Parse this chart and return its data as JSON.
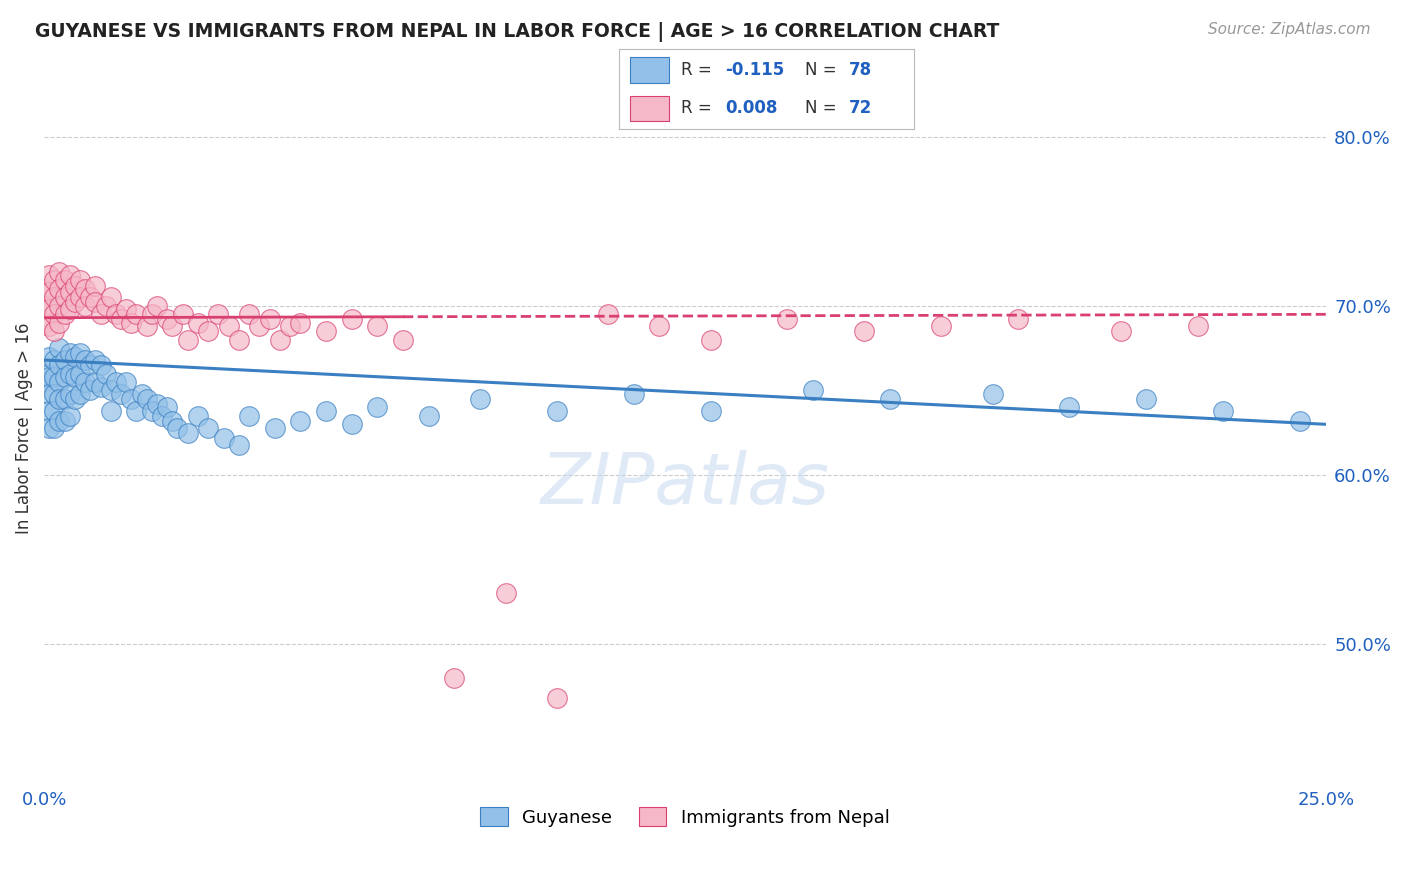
{
  "title": "GUYANESE VS IMMIGRANTS FROM NEPAL IN LABOR FORCE | AGE > 16 CORRELATION CHART",
  "source": "Source: ZipAtlas.com",
  "ylabel": "In Labor Force | Age > 16",
  "xmin": 0.0,
  "xmax": 0.25,
  "ymin": 0.42,
  "ymax": 0.835,
  "yticks": [
    0.5,
    0.6,
    0.7,
    0.8
  ],
  "ytick_labels": [
    "50.0%",
    "60.0%",
    "70.0%",
    "80.0%"
  ],
  "xticks": [
    0.0,
    0.05,
    0.1,
    0.15,
    0.2,
    0.25
  ],
  "xtick_labels": [
    "0.0%",
    "",
    "",
    "",
    "",
    "25.0%"
  ],
  "blue_color": "#92c0e8",
  "pink_color": "#f5b8c8",
  "blue_line_color": "#3a7fc1",
  "pink_line_color": "#d94070",
  "watermark": "ZIPatlas",
  "blue_x": [
    0.0,
    0.0,
    0.001,
    0.001,
    0.001,
    0.001,
    0.001,
    0.002,
    0.002,
    0.002,
    0.002,
    0.002,
    0.003,
    0.003,
    0.003,
    0.003,
    0.003,
    0.004,
    0.004,
    0.004,
    0.004,
    0.005,
    0.005,
    0.005,
    0.005,
    0.006,
    0.006,
    0.006,
    0.007,
    0.007,
    0.007,
    0.008,
    0.008,
    0.009,
    0.009,
    0.01,
    0.01,
    0.011,
    0.011,
    0.012,
    0.013,
    0.013,
    0.014,
    0.015,
    0.016,
    0.017,
    0.018,
    0.019,
    0.02,
    0.021,
    0.022,
    0.023,
    0.024,
    0.025,
    0.026,
    0.028,
    0.03,
    0.032,
    0.035,
    0.038,
    0.04,
    0.045,
    0.05,
    0.055,
    0.06,
    0.065,
    0.075,
    0.085,
    0.1,
    0.115,
    0.13,
    0.15,
    0.165,
    0.185,
    0.2,
    0.215,
    0.23,
    0.245
  ],
  "blue_y": [
    0.66,
    0.655,
    0.67,
    0.658,
    0.648,
    0.638,
    0.628,
    0.668,
    0.658,
    0.648,
    0.638,
    0.628,
    0.675,
    0.665,
    0.655,
    0.645,
    0.632,
    0.668,
    0.658,
    0.645,
    0.632,
    0.672,
    0.66,
    0.648,
    0.635,
    0.67,
    0.658,
    0.645,
    0.672,
    0.66,
    0.648,
    0.668,
    0.655,
    0.665,
    0.65,
    0.668,
    0.655,
    0.665,
    0.652,
    0.66,
    0.65,
    0.638,
    0.655,
    0.648,
    0.655,
    0.645,
    0.638,
    0.648,
    0.645,
    0.638,
    0.642,
    0.635,
    0.64,
    0.632,
    0.628,
    0.625,
    0.635,
    0.628,
    0.622,
    0.618,
    0.635,
    0.628,
    0.632,
    0.638,
    0.63,
    0.64,
    0.635,
    0.645,
    0.638,
    0.648,
    0.638,
    0.65,
    0.645,
    0.648,
    0.64,
    0.645,
    0.638,
    0.632
  ],
  "pink_x": [
    0.0,
    0.0,
    0.0,
    0.001,
    0.001,
    0.001,
    0.001,
    0.002,
    0.002,
    0.002,
    0.002,
    0.003,
    0.003,
    0.003,
    0.003,
    0.004,
    0.004,
    0.004,
    0.005,
    0.005,
    0.005,
    0.006,
    0.006,
    0.007,
    0.007,
    0.008,
    0.008,
    0.009,
    0.01,
    0.01,
    0.011,
    0.012,
    0.013,
    0.014,
    0.015,
    0.016,
    0.017,
    0.018,
    0.02,
    0.021,
    0.022,
    0.024,
    0.025,
    0.027,
    0.028,
    0.03,
    0.032,
    0.034,
    0.036,
    0.038,
    0.04,
    0.042,
    0.044,
    0.046,
    0.048,
    0.05,
    0.055,
    0.06,
    0.065,
    0.07,
    0.08,
    0.09,
    0.1,
    0.11,
    0.12,
    0.13,
    0.145,
    0.16,
    0.175,
    0.19,
    0.21,
    0.225
  ],
  "pink_y": [
    0.71,
    0.7,
    0.69,
    0.718,
    0.708,
    0.698,
    0.688,
    0.715,
    0.705,
    0.695,
    0.685,
    0.72,
    0.71,
    0.7,
    0.69,
    0.715,
    0.705,
    0.695,
    0.718,
    0.708,
    0.698,
    0.712,
    0.702,
    0.715,
    0.705,
    0.71,
    0.7,
    0.705,
    0.712,
    0.702,
    0.695,
    0.7,
    0.705,
    0.695,
    0.692,
    0.698,
    0.69,
    0.695,
    0.688,
    0.695,
    0.7,
    0.692,
    0.688,
    0.695,
    0.68,
    0.69,
    0.685,
    0.695,
    0.688,
    0.68,
    0.695,
    0.688,
    0.692,
    0.68,
    0.688,
    0.69,
    0.685,
    0.692,
    0.688,
    0.68,
    0.48,
    0.53,
    0.468,
    0.695,
    0.688,
    0.68,
    0.692,
    0.685,
    0.688,
    0.692,
    0.685,
    0.688
  ]
}
